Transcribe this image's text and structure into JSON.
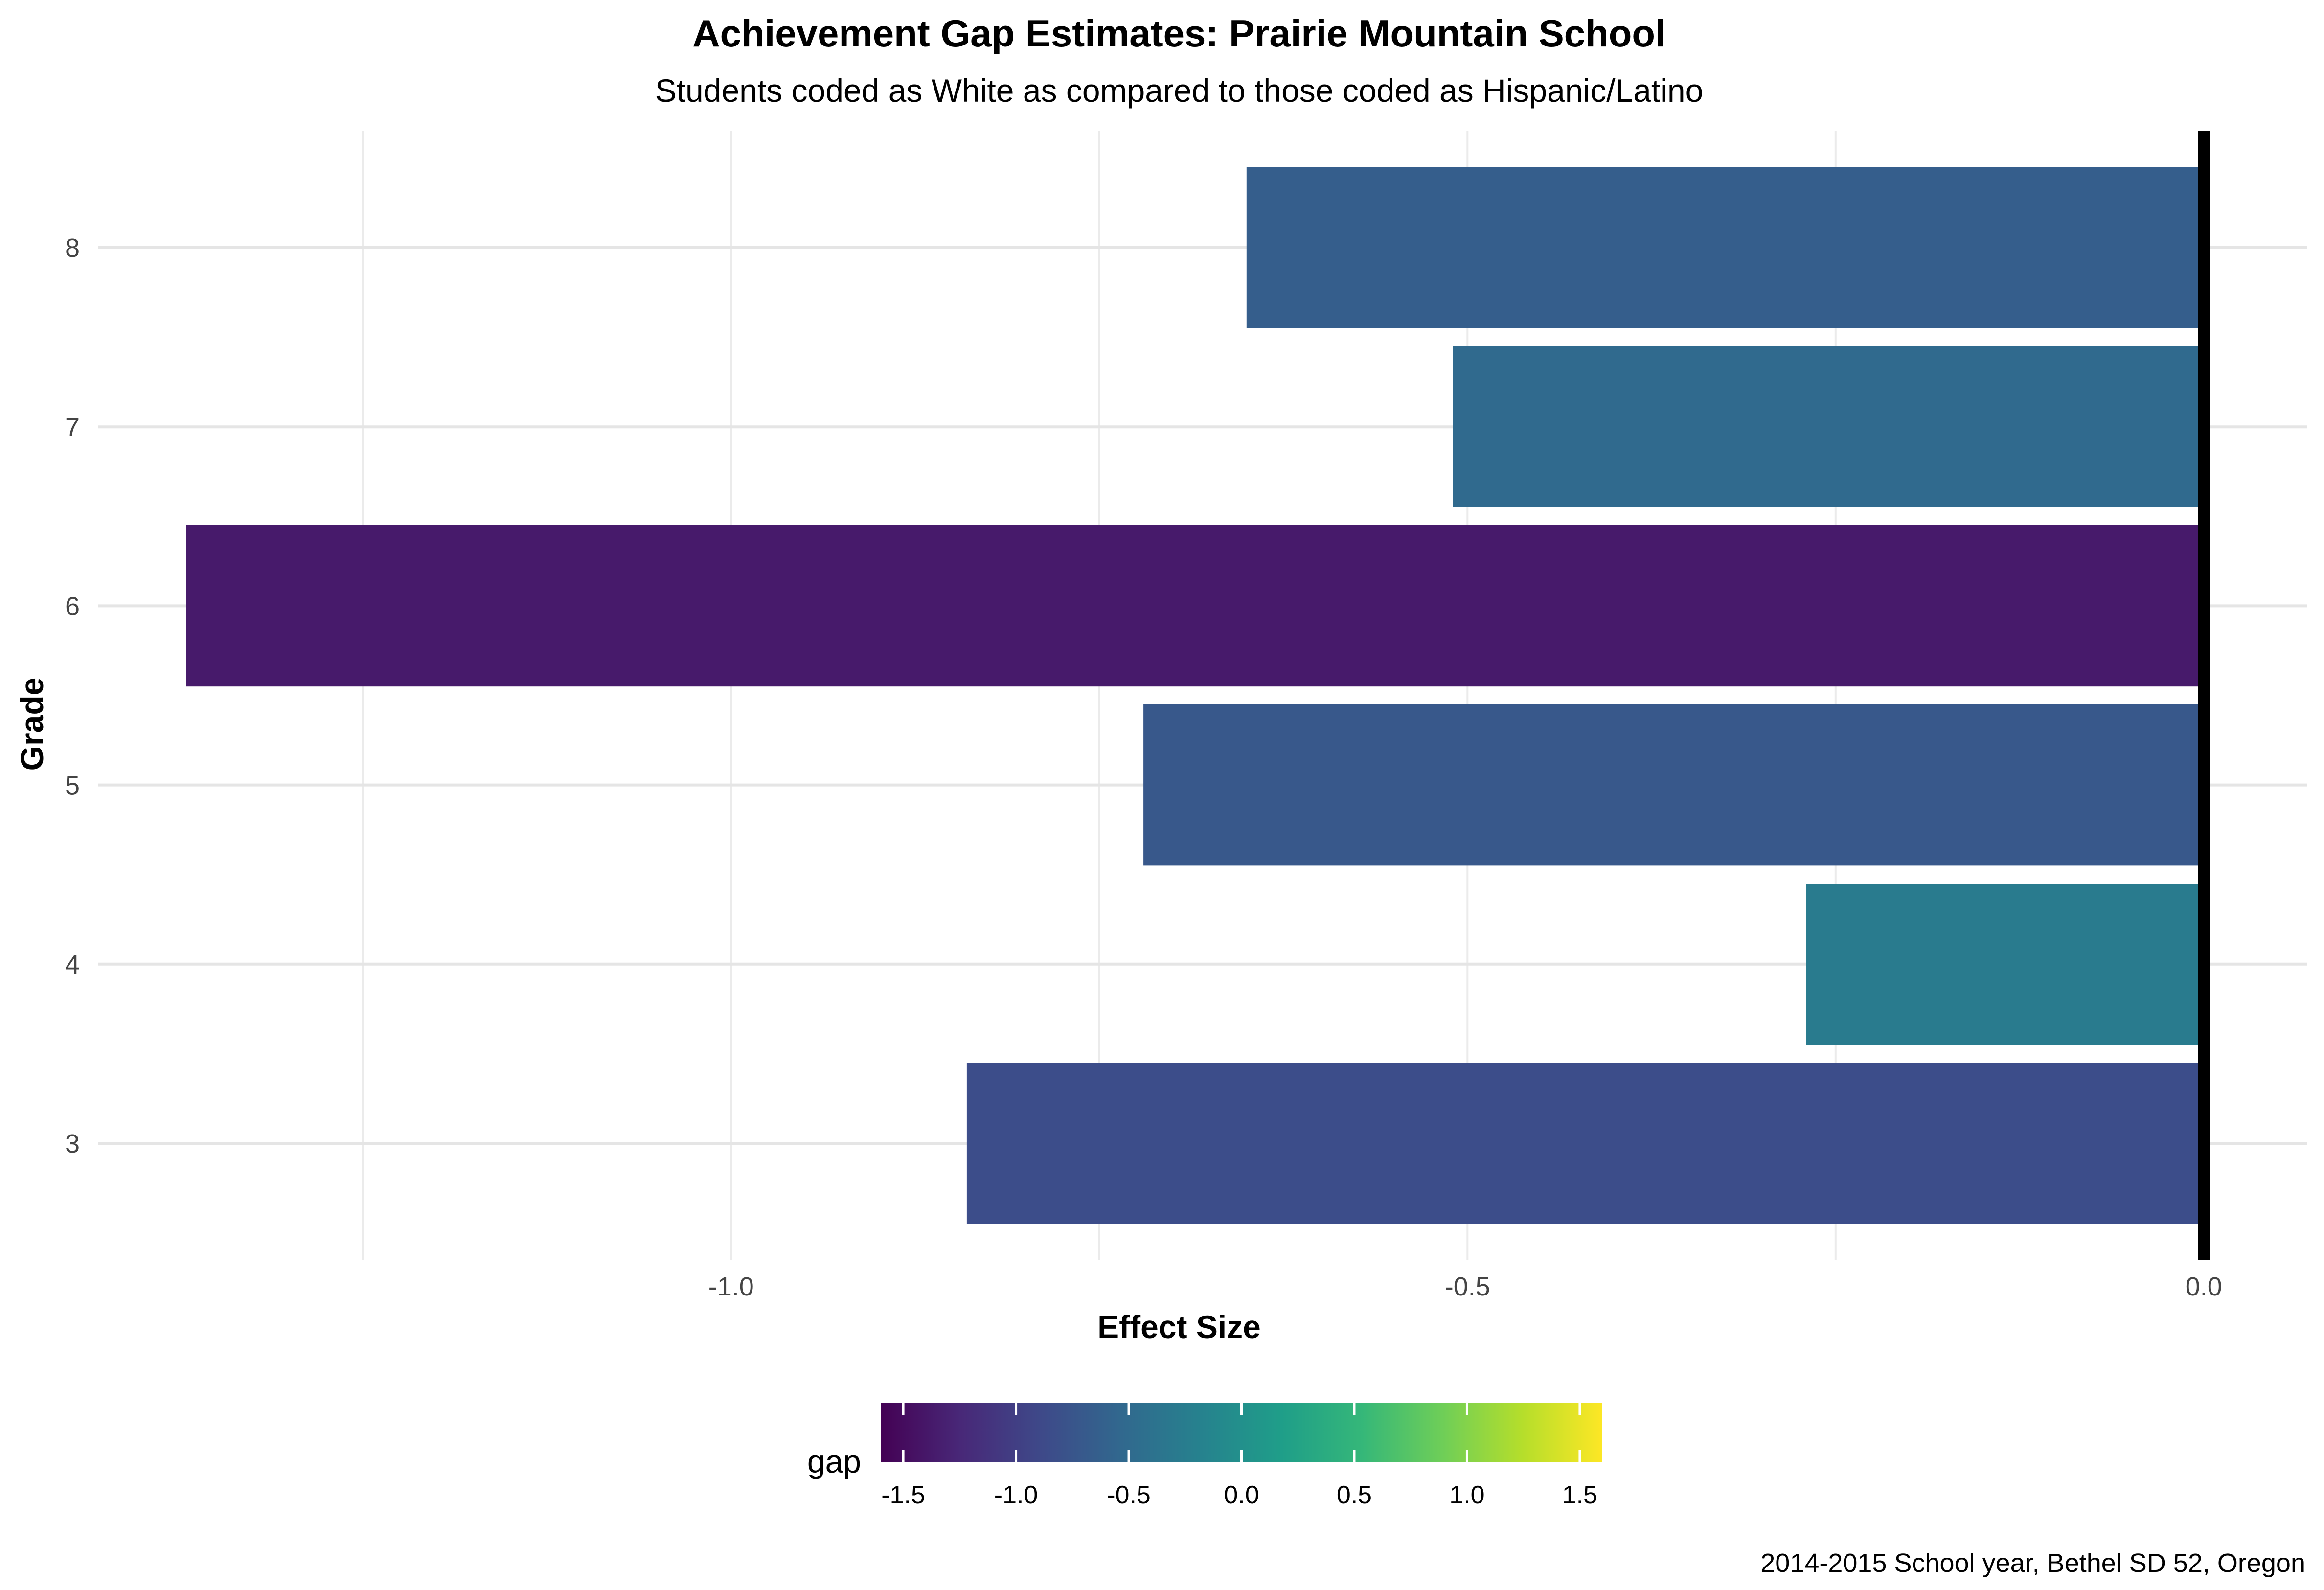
{
  "chart_data": {
    "type": "bar",
    "orientation": "horizontal",
    "title": "Achievement Gap Estimates: Prairie Mountain School",
    "subtitle": "Students coded as White as compared to those coded as Hispanic/Latino",
    "xlabel": "Effect Size",
    "ylabel": "Grade",
    "categories": [
      "3",
      "4",
      "5",
      "6",
      "7",
      "8"
    ],
    "values": [
      -0.84,
      -0.27,
      -0.72,
      -1.37,
      -0.51,
      -0.65
    ],
    "xlim": [
      -1.43,
      0.07
    ],
    "x_ticks": [
      "-1.0",
      "-0.5",
      "0.0"
    ],
    "x_tick_values": [
      -1.0,
      -0.5,
      0.0
    ],
    "grid": true,
    "reference_line": 0,
    "legend": {
      "title": "gap",
      "position": "bottom",
      "type": "colorbar",
      "range": [
        -1.6,
        1.6
      ],
      "ticks": [
        "-1.5",
        "-1.0",
        "-0.5",
        "0.0",
        "0.5",
        "1.0",
        "1.5"
      ],
      "tick_values": [
        -1.5,
        -1.0,
        -0.5,
        0.0,
        0.5,
        1.0,
        1.5
      ]
    },
    "caption": "2014-2015 School year, Bethel SD 52, Oregon",
    "colormap": [
      "#440154",
      "#482878",
      "#3e4989",
      "#31688e",
      "#26828e",
      "#1f9e89",
      "#35b779",
      "#6ece58",
      "#b5de2b",
      "#fde725"
    ]
  }
}
